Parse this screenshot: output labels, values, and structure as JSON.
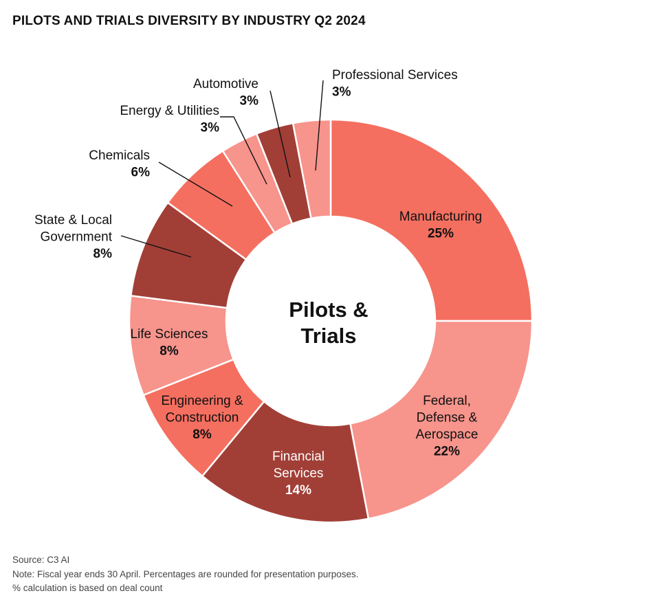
{
  "title": "PILOTS AND TRIALS DIVERSITY BY INDUSTRY Q2 2024",
  "chart_data": {
    "type": "pie",
    "style": "donut",
    "title": "PILOTS AND TRIALS DIVERSITY BY INDUSTRY Q2 2024",
    "center_label": [
      "Pilots &",
      "Trials"
    ],
    "slices": [
      {
        "label": [
          "Manufacturing"
        ],
        "value_label": "25%",
        "value": 25,
        "color": "#F46F60",
        "label_style": "inside"
      },
      {
        "label": [
          "Federal,",
          "Defense &",
          "Aerospace"
        ],
        "value_label": "22%",
        "value": 22,
        "color": "#F7948C",
        "label_style": "inside"
      },
      {
        "label": [
          "Financial",
          "Services"
        ],
        "value_label": "14%",
        "value": 14,
        "color": "#A13F37",
        "label_style": "inside-light"
      },
      {
        "label": [
          "Engineering &",
          "Construction"
        ],
        "value_label": "8%",
        "value": 8,
        "color": "#F46F60",
        "label_style": "inside"
      },
      {
        "label": [
          "Life Sciences"
        ],
        "value_label": "8%",
        "value": 8,
        "color": "#F7948C",
        "label_style": "inside"
      },
      {
        "label": [
          "State & Local",
          "Government"
        ],
        "value_label": "8%",
        "value": 8,
        "color": "#A13F37",
        "label_style": "outside"
      },
      {
        "label": [
          "Chemicals"
        ],
        "value_label": "6%",
        "value": 6,
        "color": "#F46F60",
        "label_style": "outside"
      },
      {
        "label": [
          "Energy & Utilities"
        ],
        "value_label": "3%",
        "value": 3,
        "color": "#F7948C",
        "label_style": "outside"
      },
      {
        "label": [
          "Automotive"
        ],
        "value_label": "3%",
        "value": 3,
        "color": "#A13F37",
        "label_style": "outside"
      },
      {
        "label": [
          "Professional Services"
        ],
        "value_label": "3%",
        "value": 3,
        "color": "#F7948C",
        "label_style": "outside"
      }
    ]
  },
  "footer": {
    "source": "Source: C3 AI",
    "note": "Note: Fiscal year ends 30 April. Percentages are rounded for presentation purposes.",
    "calc": "% calculation is based on deal count"
  }
}
